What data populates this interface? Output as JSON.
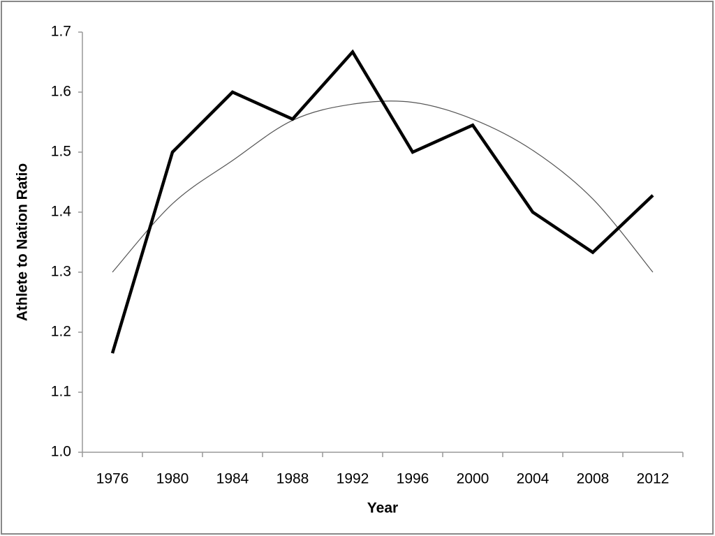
{
  "chart_data": {
    "type": "line",
    "x_label": "Year",
    "y_label": "Athlete to Nation Ratio",
    "categories": [
      "1976",
      "1980",
      "1984",
      "1988",
      "1992",
      "1996",
      "2000",
      "2004",
      "2008",
      "2012"
    ],
    "series": [
      {
        "color": "#000000",
        "values": [
          1.165,
          1.5,
          1.6,
          1.555,
          1.667,
          1.5,
          1.545,
          1.4,
          1.333,
          1.428
        ]
      },
      {
        "color": "#555555",
        "values": [
          1.3,
          1.414,
          1.486,
          1.553,
          1.58,
          1.583,
          1.555,
          1.503,
          1.422,
          1.3
        ]
      }
    ],
    "ylim": [
      1.0,
      1.7
    ],
    "yticks": [
      {
        "value": 1.0,
        "label": "1.0"
      },
      1.1,
      1.2,
      1.3,
      1.4,
      1.5,
      1.6,
      1.7
    ],
    "grid": false
  }
}
